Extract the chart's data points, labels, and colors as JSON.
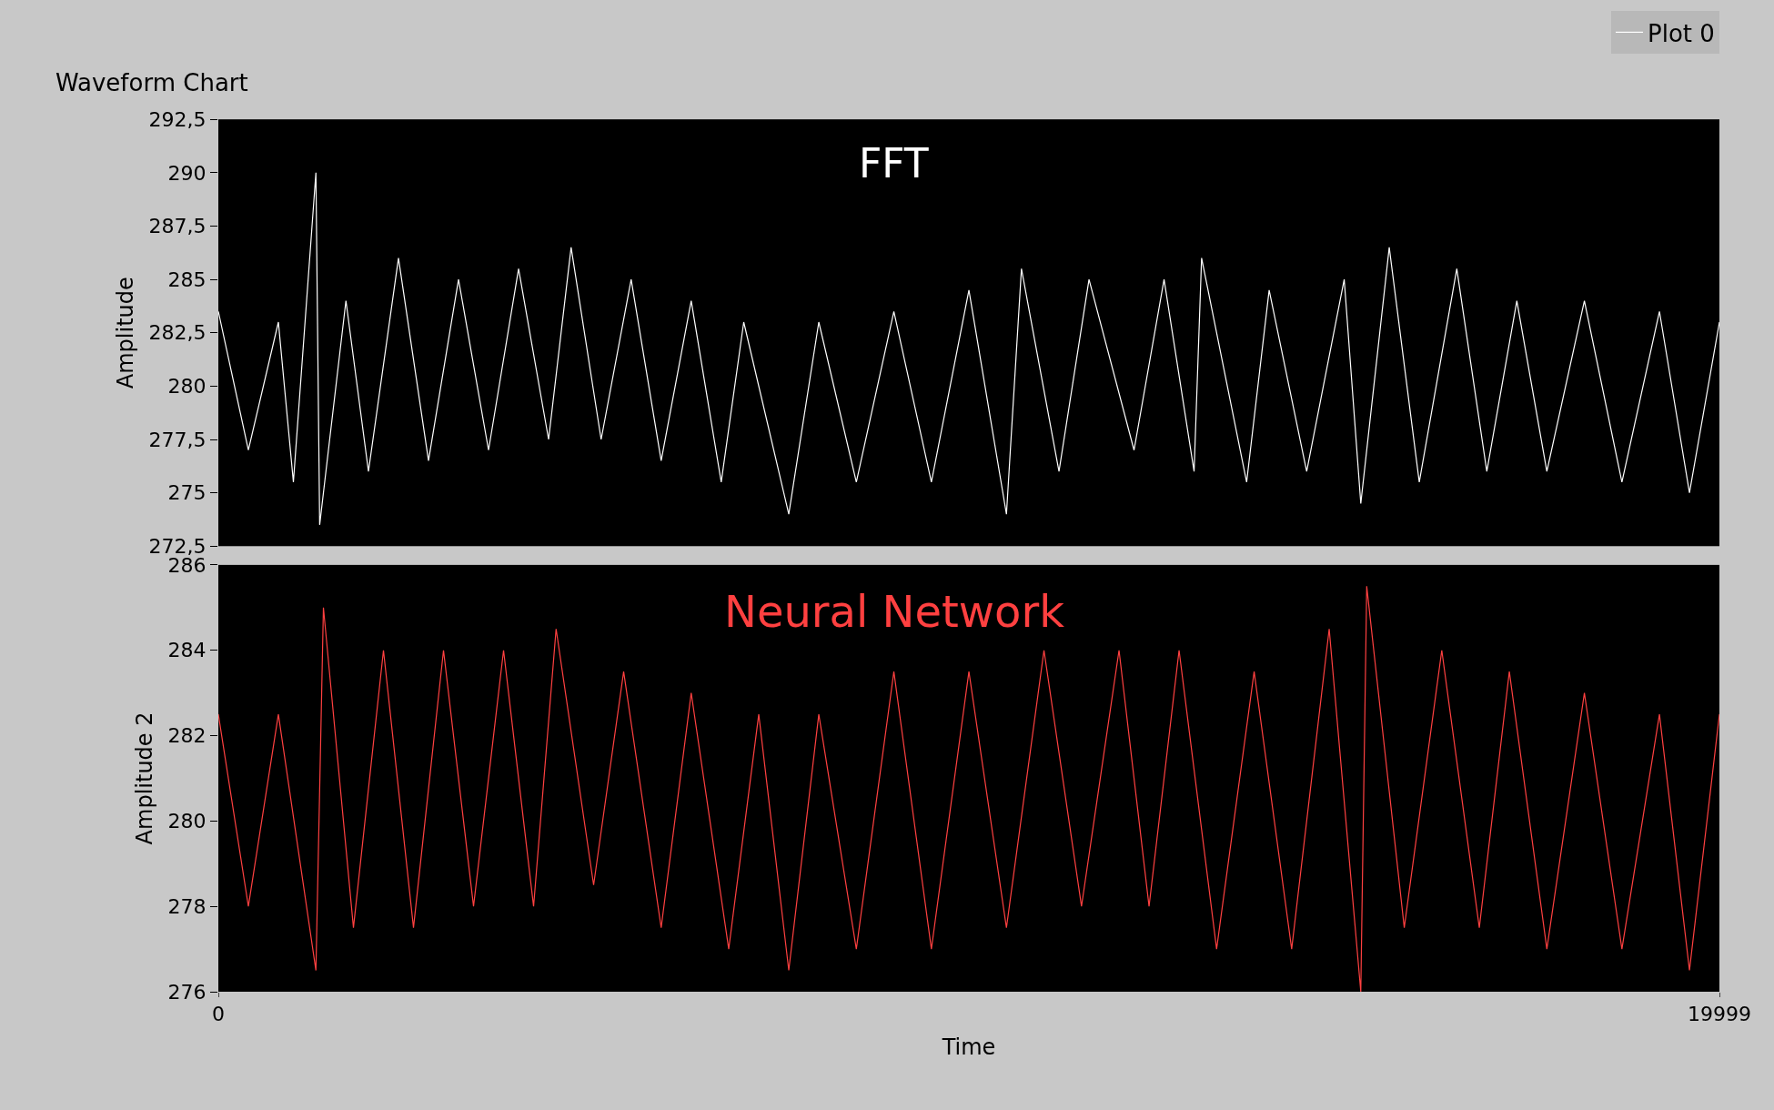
{
  "chart_data": [
    {
      "type": "line",
      "title": "Waveform Chart",
      "ylabel": "Amplitude",
      "annotations": [
        "FFT"
      ],
      "legend": "top right",
      "grid": false,
      "tick_labels": "y",
      "line_style": "solid",
      "xlim": [
        0,
        19999
      ],
      "ylim": [
        272.5,
        292.5
      ],
      "yticks": [
        {
          "value": 272.5,
          "label": "272,5"
        },
        275,
        {
          "value": 277.5,
          "label": "277,5"
        },
        280,
        {
          "value": 282.5,
          "label": "282,5"
        },
        285,
        {
          "value": 287.5,
          "label": "287,5"
        },
        290,
        {
          "value": 292.5,
          "label": "292,5"
        }
      ],
      "series": [
        {
          "name": "Plot 0",
          "color": "#ffffff",
          "x": [
            0,
            400,
            800,
            1000,
            1300,
            1350,
            1700,
            2000,
            2400,
            2800,
            3200,
            3600,
            4000,
            4400,
            4700,
            5100,
            5500,
            5900,
            6300,
            6700,
            7000,
            7600,
            8000,
            8500,
            9000,
            9500,
            10000,
            10500,
            10700,
            11200,
            11600,
            12200,
            12600,
            13000,
            13100,
            13700,
            14000,
            14500,
            15000,
            15221,
            15600,
            16000,
            16500,
            16900,
            17300,
            17700,
            18200,
            18700,
            19200,
            19600,
            19999
          ],
          "values": [
            283.5,
            277,
            283,
            275.5,
            290,
            273.5,
            284,
            276,
            286,
            276.5,
            285,
            277,
            285.5,
            277.5,
            286.5,
            277.5,
            285,
            276.5,
            284,
            275.5,
            283,
            274,
            283,
            275.5,
            283.5,
            275.5,
            284.5,
            274,
            285.5,
            276,
            285,
            277,
            285,
            276,
            286,
            275.5,
            284.5,
            276,
            285,
            274.5,
            286.5,
            275.5,
            285.5,
            276,
            284,
            276,
            284,
            275.5,
            283.5,
            275,
            283
          ]
        }
      ]
    },
    {
      "type": "line",
      "ylabel": "Amplitude 2",
      "xlabel": "Time",
      "annotations": [
        "Neural Network"
      ],
      "grid": false,
      "line_style": "solid",
      "xlim": [
        0,
        19999
      ],
      "xticks": [
        0,
        19999
      ],
      "ylim": [
        276,
        286
      ],
      "yticks": [
        276,
        278,
        280,
        282,
        284,
        286
      ],
      "series": [
        {
          "color": "#ff4040",
          "x": [
            0,
            400,
            800,
            1300,
            1400,
            1800,
            2200,
            2600,
            3000,
            3400,
            3800,
            4200,
            4500,
            5000,
            5400,
            5900,
            6300,
            6800,
            7200,
            7600,
            8000,
            8500,
            9000,
            9500,
            10000,
            10500,
            11000,
            11500,
            12000,
            12400,
            12800,
            13300,
            13800,
            14300,
            14800,
            15221,
            15300,
            15800,
            16300,
            16800,
            17200,
            17700,
            18200,
            18700,
            19200,
            19600,
            19999
          ],
          "values": [
            282.5,
            278,
            282.5,
            276.5,
            285,
            277.5,
            284,
            277.5,
            284,
            278,
            284,
            278,
            284.5,
            278.5,
            283.5,
            277.5,
            283,
            277,
            282.5,
            276.5,
            282.5,
            277,
            283.5,
            277,
            283.5,
            277.5,
            284,
            278,
            284,
            278,
            284,
            277,
            283.5,
            277,
            284.5,
            276,
            285.5,
            277.5,
            284,
            277.5,
            283.5,
            277,
            283,
            277,
            282.5,
            276.5,
            282.5
          ]
        }
      ]
    }
  ]
}
